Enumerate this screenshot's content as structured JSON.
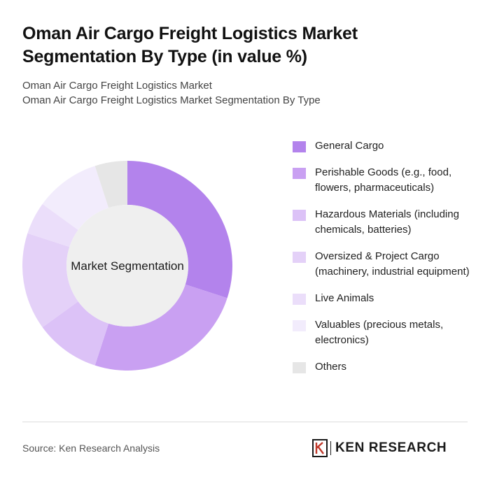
{
  "header": {
    "title": "Oman Air Cargo Freight Logistics Market Segmentation By Type (in value %)",
    "subtitle_line1": "Oman Air Cargo Freight Logistics Market",
    "subtitle_line2": "Oman Air Cargo Freight Logistics Market Segmentation By Type"
  },
  "chart_data": {
    "type": "pie",
    "variant": "donut",
    "center_label": "Market Segmentation",
    "categories": [
      "General Cargo",
      "Perishable Goods (e.g., food, flowers, pharmaceuticals)",
      "Hazardous Materials (including chemicals, batteries)",
      "Oversized & Project Cargo (machinery, industrial equipment)",
      "Live Animals",
      "Valuables (precious metals, electronics)",
      "Others"
    ],
    "values": [
      30,
      25,
      10,
      15,
      5,
      10,
      5
    ],
    "colors": [
      "#b383ec",
      "#c9a0f2",
      "#dcc2f7",
      "#e4d1f8",
      "#ebdefa",
      "#f2ecfc",
      "#e6e6e6"
    ],
    "legend_position": "right"
  },
  "footer": {
    "source": "Source: Ken Research Analysis",
    "brand": "KEN RESEARCH",
    "brand_icon": "ken-research-logo"
  }
}
